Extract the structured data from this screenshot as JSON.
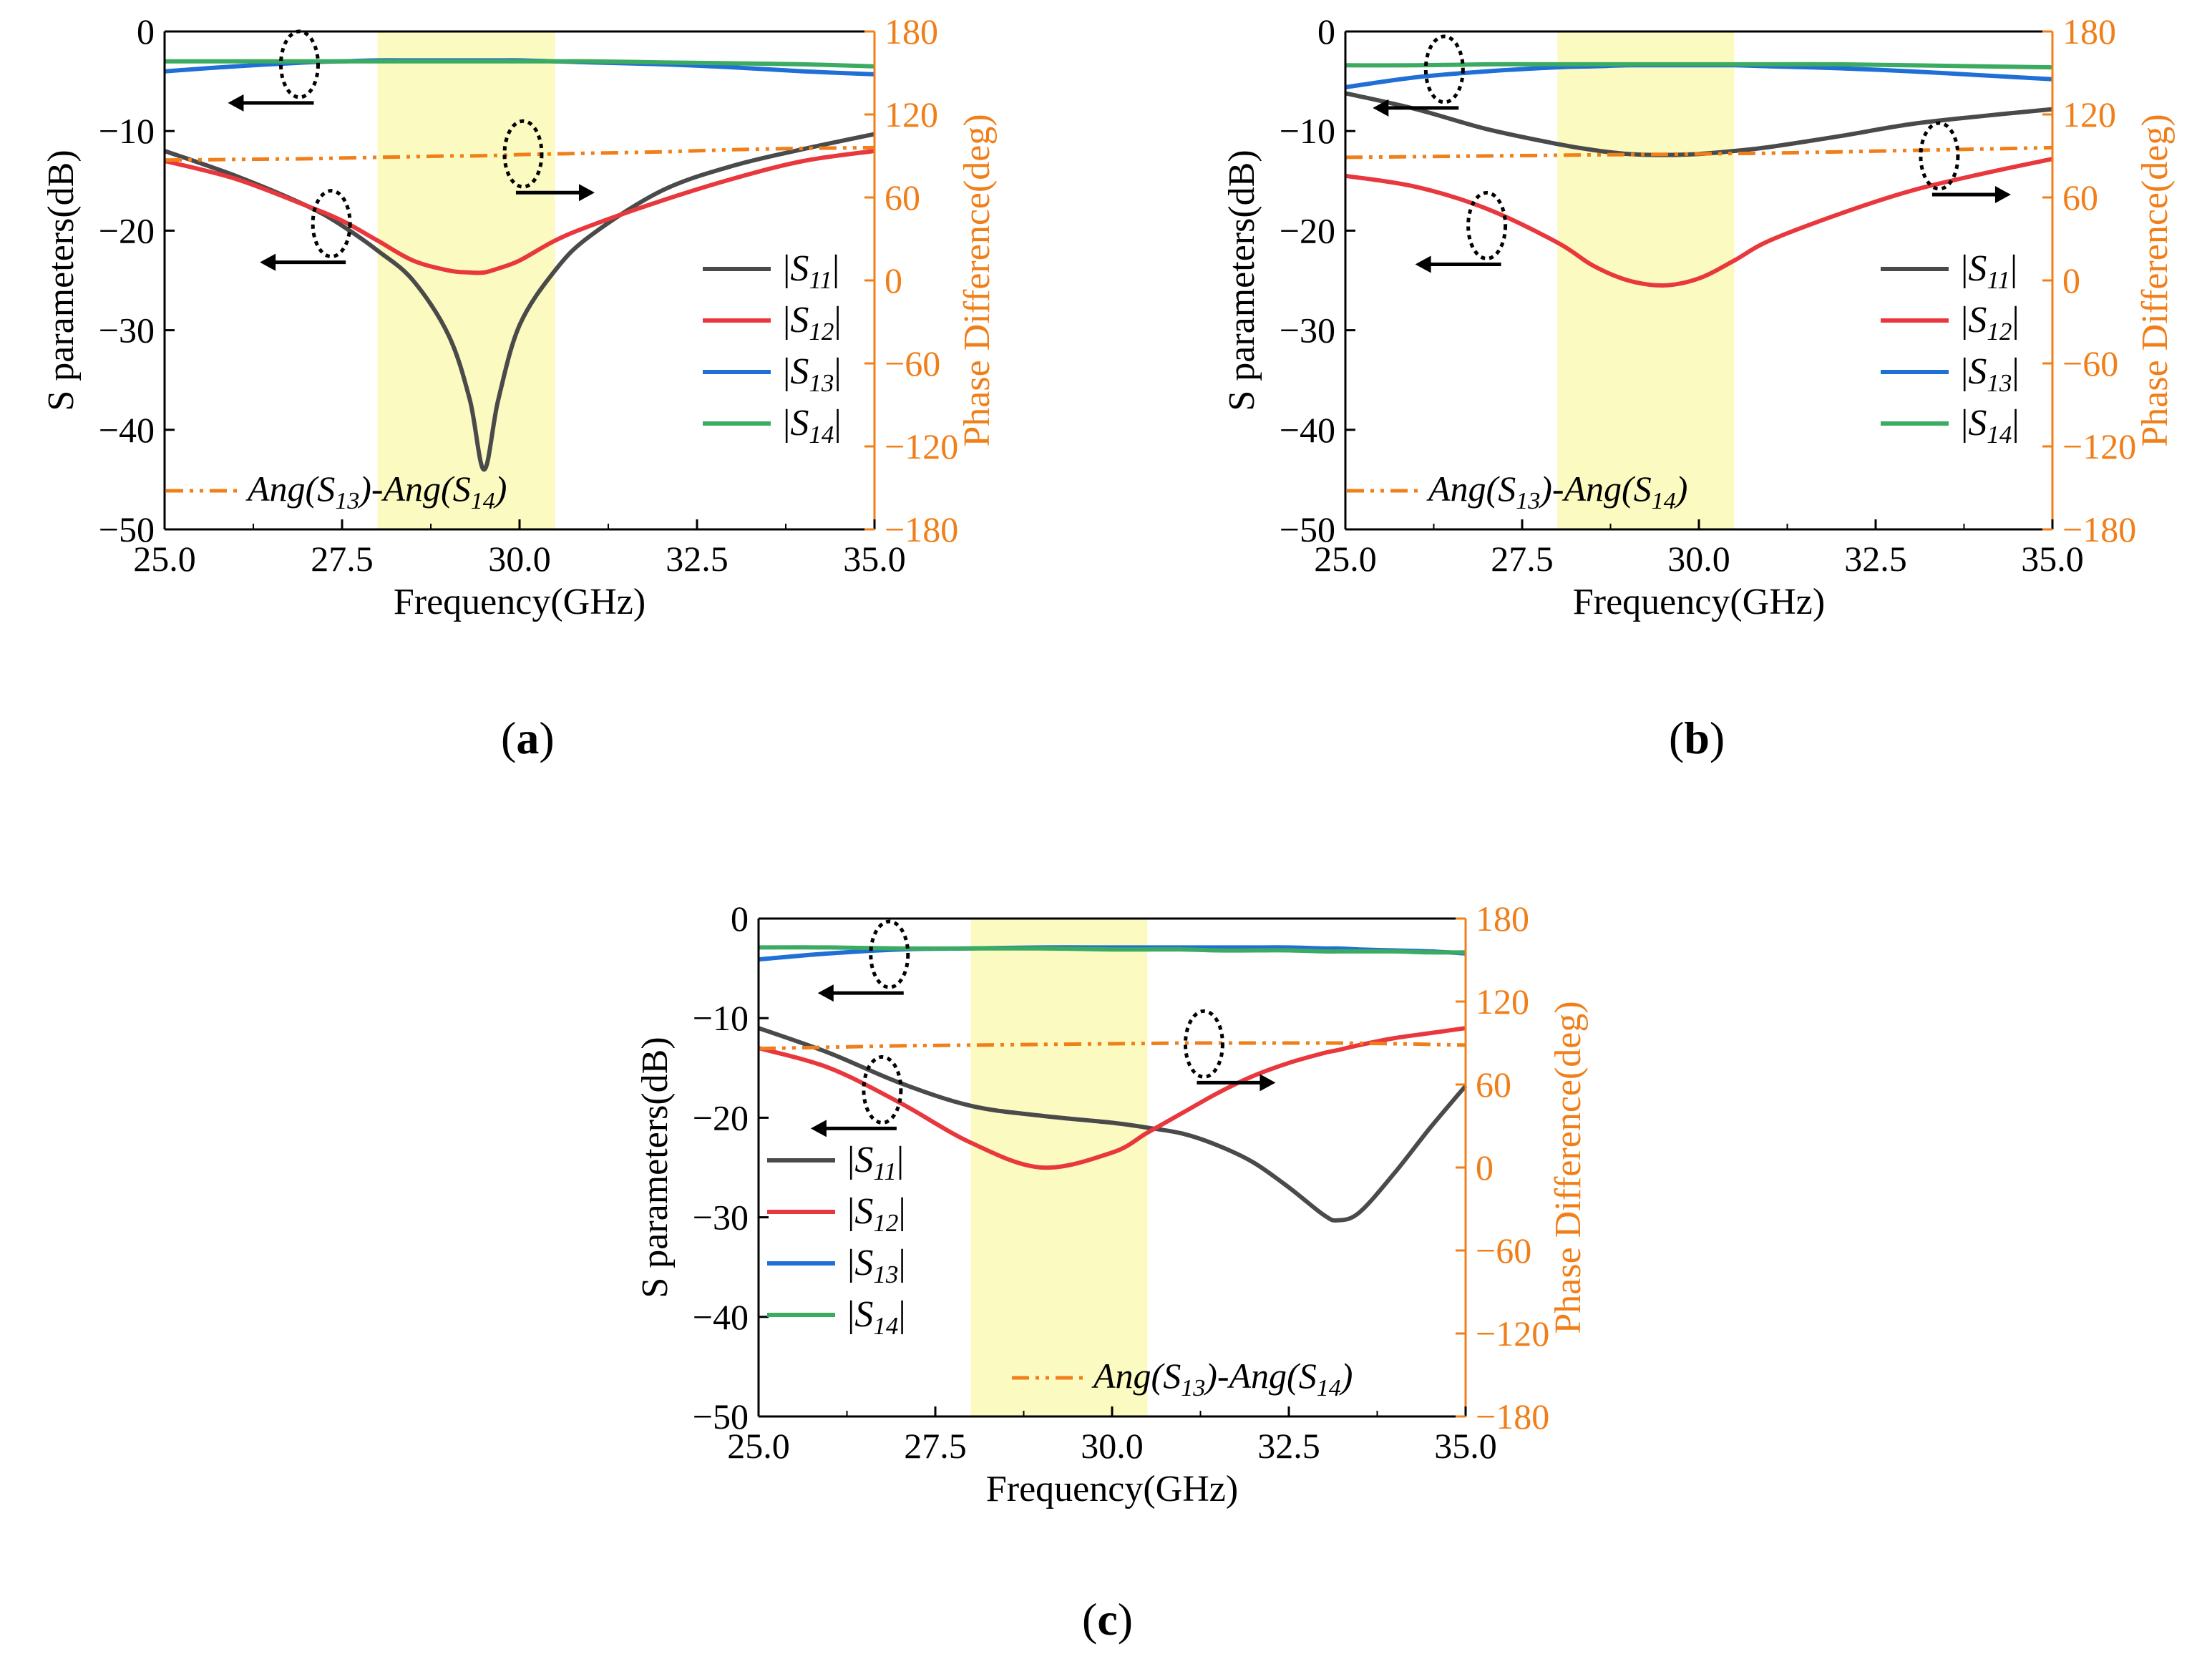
{
  "captions": {
    "a": "a",
    "b": "b",
    "c": "c"
  },
  "colors": {
    "S11": "#4a4a4a",
    "S12": "#e8383d",
    "S13": "#1f6fd6",
    "S14": "#3bab62",
    "phase": "#f07f1a",
    "band": "#fbfac0",
    "axis": "#000000"
  },
  "chart_data": [
    {
      "panel": "a",
      "type": "line",
      "xlabel": "Frequency(GHz)",
      "ylabel": "S parameters(dB)",
      "y2label": "Phase Difference(deg)",
      "xlim": [
        25,
        35
      ],
      "ylim": [
        -50,
        0
      ],
      "y2lim": [
        -180,
        180
      ],
      "xticks": [
        "25.0",
        "27.5",
        "30.0",
        "32.5",
        "35.0"
      ],
      "yticks": [
        "0",
        "−10",
        "−20",
        "−30",
        "−40",
        "−50"
      ],
      "y2ticks": [
        "180",
        "120",
        "60",
        "0",
        "−60",
        "−120",
        "−180"
      ],
      "band": [
        28,
        30.5
      ],
      "legend": {
        "position": "right",
        "entries": [
          "|S11|",
          "|S12|",
          "|S13|",
          "|S14|"
        ]
      },
      "phase_legend": "Ang(S13)-Ang(S14)",
      "x": [
        25,
        26,
        27,
        27.5,
        28,
        28.5,
        29,
        29.3,
        29.5,
        29.7,
        30,
        30.5,
        31,
        32,
        33,
        34,
        35
      ],
      "series": [
        {
          "name": "|S11|",
          "axis": "left",
          "values": [
            -12,
            -14.5,
            -17.5,
            -19.5,
            -22,
            -25,
            -30.5,
            -37,
            -44,
            -37,
            -29.5,
            -24,
            -20.5,
            -16,
            -13.5,
            -11.8,
            -10.3
          ]
        },
        {
          "name": "|S12|",
          "axis": "left",
          "values": [
            -13,
            -14.8,
            -17.5,
            -19,
            -21,
            -23,
            -24,
            -24.2,
            -24.2,
            -23.8,
            -23,
            -21,
            -19.5,
            -17,
            -14.8,
            -13,
            -12
          ]
        },
        {
          "name": "|S13|",
          "axis": "left",
          "values": [
            -4,
            -3.5,
            -3.1,
            -3,
            -2.9,
            -2.9,
            -2.9,
            -2.9,
            -2.9,
            -2.9,
            -2.9,
            -3,
            -3.1,
            -3.3,
            -3.6,
            -4,
            -4.3
          ]
        },
        {
          "name": "|S14|",
          "axis": "left",
          "values": [
            -3,
            -3,
            -3,
            -3,
            -3,
            -3,
            -3,
            -3,
            -3,
            -3,
            -3,
            -3,
            -3,
            -3.1,
            -3.2,
            -3.3,
            -3.5
          ]
        },
        {
          "name": "Ang(S13)-Ang(S14)",
          "axis": "right",
          "dashed": true,
          "values": [
            87,
            87.5,
            88,
            88.5,
            89,
            89.5,
            90,
            90,
            90.2,
            90.4,
            91,
            91.5,
            92,
            93,
            94.5,
            95.5,
            96
          ]
        }
      ],
      "annotations": [
        {
          "x": 26.9,
          "y": -3.3,
          "dir": "left"
        },
        {
          "x": 27.35,
          "y": -19.3,
          "dir": "left"
        },
        {
          "x": 30.05,
          "y": -12.3,
          "dir": "right"
        }
      ]
    },
    {
      "panel": "b",
      "type": "line",
      "xlabel": "Frequency(GHz)",
      "ylabel": "S parameters(dB)",
      "y2label": "Phase Difference(deg)",
      "xlim": [
        25,
        35
      ],
      "ylim": [
        -50,
        0
      ],
      "y2lim": [
        -180,
        180
      ],
      "xticks": [
        "25.0",
        "27.5",
        "30.0",
        "32.5",
        "35.0"
      ],
      "yticks": [
        "0",
        "−10",
        "−20",
        "−30",
        "−40",
        "−50"
      ],
      "y2ticks": [
        "180",
        "120",
        "60",
        "0",
        "−60",
        "−120",
        "−180"
      ],
      "band": [
        28,
        30.5
      ],
      "legend": {
        "position": "right",
        "entries": [
          "|S11|",
          "|S12|",
          "|S13|",
          "|S14|"
        ]
      },
      "phase_legend": "Ang(S13)-Ang(S14)",
      "x": [
        25,
        26,
        27,
        28,
        28.5,
        29,
        29.5,
        30,
        30.5,
        31,
        32,
        33,
        34,
        35
      ],
      "series": [
        {
          "name": "|S11|",
          "axis": "left",
          "values": [
            -6.2,
            -7.8,
            -9.8,
            -11.3,
            -11.9,
            -12.3,
            -12.4,
            -12.3,
            -12,
            -11.6,
            -10.5,
            -9.3,
            -8.5,
            -7.8
          ]
        },
        {
          "name": "|S12|",
          "axis": "left",
          "values": [
            -14.5,
            -15.6,
            -17.8,
            -21.2,
            -23.5,
            -25,
            -25.5,
            -24.8,
            -23,
            -21,
            -18.3,
            -16,
            -14.3,
            -12.8
          ]
        },
        {
          "name": "|S13|",
          "axis": "left",
          "values": [
            -5.6,
            -4.6,
            -4,
            -3.6,
            -3.5,
            -3.4,
            -3.4,
            -3.4,
            -3.4,
            -3.5,
            -3.7,
            -4,
            -4.4,
            -4.8
          ]
        },
        {
          "name": "|S14|",
          "axis": "left",
          "values": [
            -3.4,
            -3.4,
            -3.3,
            -3.3,
            -3.3,
            -3.3,
            -3.3,
            -3.3,
            -3.3,
            -3.3,
            -3.3,
            -3.4,
            -3.5,
            -3.6
          ]
        },
        {
          "name": "Ang(S13)-Ang(S14)",
          "axis": "right",
          "dashed": true,
          "values": [
            89,
            89.5,
            90,
            90.5,
            90.8,
            91,
            91.2,
            91.5,
            91.8,
            92,
            93,
            94,
            95,
            96
          ]
        }
      ],
      "annotations": [
        {
          "x": 26.4,
          "y": -3.8,
          "dir": "left"
        },
        {
          "x": 27.0,
          "y": -19.5,
          "dir": "left"
        },
        {
          "x": 33.4,
          "y": -12.5,
          "dir": "right"
        }
      ]
    },
    {
      "panel": "c",
      "type": "line",
      "xlabel": "Frequency(GHz)",
      "ylabel": "S parameters(dB)",
      "y2label": "Phase Difference(deg)",
      "xlim": [
        25,
        35
      ],
      "ylim": [
        -50,
        0
      ],
      "y2lim": [
        -180,
        180
      ],
      "xticks": [
        "25.0",
        "27.5",
        "30.0",
        "32.5",
        "35.0"
      ],
      "yticks": [
        "0",
        "−10",
        "−20",
        "−30",
        "−40",
        "−50"
      ],
      "y2ticks": [
        "180",
        "120",
        "60",
        "0",
        "−60",
        "−120",
        "−180"
      ],
      "band": [
        28,
        30.5
      ],
      "legend": {
        "position": "bottom-left",
        "entries": [
          "|S11|",
          "|S12|",
          "|S13|",
          "|S14|"
        ]
      },
      "phase_legend": "Ang(S13)-Ang(S14)",
      "x": [
        25,
        26,
        27,
        28,
        29,
        30,
        30.5,
        31,
        31.5,
        32,
        32.5,
        33,
        33.2,
        33.5,
        34,
        34.5,
        35
      ],
      "series": [
        {
          "name": "|S11|",
          "axis": "left",
          "values": [
            -11,
            -13.5,
            -16.5,
            -18.8,
            -19.8,
            -20.5,
            -21,
            -21.6,
            -22.8,
            -24.5,
            -27,
            -29.8,
            -30.3,
            -29.5,
            -25.5,
            -21,
            -16.8
          ]
        },
        {
          "name": "|S12|",
          "axis": "left",
          "values": [
            -13,
            -15,
            -18.5,
            -22.5,
            -25,
            -23.5,
            -21.5,
            -19.5,
            -17.5,
            -15.8,
            -14.5,
            -13.5,
            -13.2,
            -12.7,
            -12,
            -11.5,
            -11
          ]
        },
        {
          "name": "|S13|",
          "axis": "left",
          "values": [
            -4.1,
            -3.5,
            -3.1,
            -3,
            -2.9,
            -2.9,
            -2.9,
            -2.9,
            -2.9,
            -2.9,
            -2.9,
            -3,
            -3,
            -3.1,
            -3.2,
            -3.3,
            -3.5
          ]
        },
        {
          "name": "|S14|",
          "axis": "left",
          "values": [
            -2.9,
            -2.9,
            -3,
            -3,
            -3,
            -3.1,
            -3.1,
            -3.1,
            -3.2,
            -3.2,
            -3.2,
            -3.3,
            -3.3,
            -3.3,
            -3.3,
            -3.4,
            -3.4
          ]
        },
        {
          "name": "Ang(S13)-Ang(S14)",
          "axis": "right",
          "dashed": true,
          "values": [
            86,
            87,
            88,
            88.5,
            89,
            89.5,
            89.7,
            90,
            90,
            90,
            90,
            90,
            90,
            89.8,
            89.5,
            89,
            88.5
          ]
        }
      ],
      "annotations": [
        {
          "x": 26.85,
          "y": -3.6,
          "dir": "left"
        },
        {
          "x": 26.75,
          "y": -17.2,
          "dir": "left"
        },
        {
          "x": 31.3,
          "y": -12.6,
          "dir": "right"
        }
      ]
    }
  ]
}
